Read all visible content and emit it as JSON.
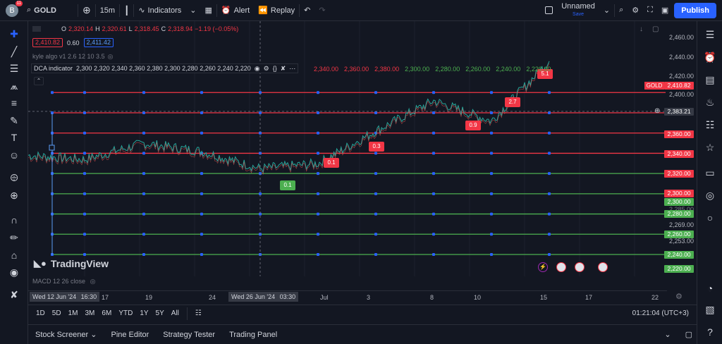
{
  "topbar": {
    "avatar_letter": "B",
    "avatar_badge": "11",
    "symbol": "GOLD",
    "interval": "15m",
    "indicators_label": "Indicators",
    "alert_label": "Alert",
    "replay_label": "Replay",
    "layout_name": "Unnamed",
    "layout_status": "Save",
    "publish_label": "Publish"
  },
  "ohlc": {
    "o": "O",
    "o_val": "2,320.14",
    "h": "H",
    "h_val": "2,320.61",
    "l": "L",
    "l_val": "2,318.45",
    "c": "C",
    "c_val": "2,318.94",
    "chg": "−1.19 (−0.05%)"
  },
  "inputs": {
    "bid": "2,410.82",
    "spread": "0.60",
    "ask": "2,411.42"
  },
  "kyle_label": "kyle algo v1 2.6 12 10 3.5",
  "dca": {
    "label": "DCA indicator",
    "params": "2,300 2,320 2,340 2,360 2,380 2,300 2,280 2,260 2,240 2,220"
  },
  "chart_levels_text": [
    {
      "t": "2,340.00",
      "c": "#f23645"
    },
    {
      "t": "2,360.00",
      "c": "#f23645"
    },
    {
      "t": "2,380.00",
      "c": "#f23645"
    },
    {
      "t": "2,300.00",
      "c": "#4caf50"
    },
    {
      "t": "2,280.00",
      "c": "#4caf50"
    },
    {
      "t": "2,260.00",
      "c": "#4caf50"
    },
    {
      "t": "2,240.00",
      "c": "#4caf50"
    },
    {
      "t": "2,220.00",
      "c": "#4caf50"
    }
  ],
  "price_axis": {
    "labels": [
      "2,460.00",
      "2,440.00",
      "2,420.00",
      "2,400.00",
      "2,269.00",
      "2,253.00"
    ],
    "gold_tag": "GOLD",
    "gold_price": "2,410.82",
    "cursor_price": "2,383.21",
    "red_boxes": [
      "2,360.00",
      "2,340.00",
      "2,320.00",
      "2,300.00"
    ],
    "green_boxes": [
      "2,300.00",
      "2,280.00",
      "2,260.00",
      "2,240.00",
      "2,220.00"
    ],
    "hidden_partial": "2,285.00"
  },
  "tags": [
    {
      "t": "0.1",
      "c": "#4caf50"
    },
    {
      "t": "0.1",
      "c": "#f23645"
    },
    {
      "t": "0.3",
      "c": "#f23645"
    },
    {
      "t": "0.9",
      "c": "#f23645"
    },
    {
      "t": "2.7",
      "c": "#f23645"
    },
    {
      "t": "5.1",
      "c": "#f23645"
    }
  ],
  "watermark": "TradingView",
  "macd_label": "MACD 12 26 close",
  "time_axis": {
    "cursor_left": "Wed 12 Jun '24",
    "cursor_left_time": "16:30",
    "labels": [
      "17",
      "19",
      "24",
      "Jul",
      "3",
      "8",
      "10",
      "15",
      "17",
      "22"
    ],
    "cursor_mid": "Wed 26 Jun '24",
    "cursor_mid_time": "03:30"
  },
  "ranges": [
    "1D",
    "5D",
    "1M",
    "3M",
    "6M",
    "YTD",
    "1Y",
    "5Y",
    "All"
  ],
  "clock": "01:21:04 (UTC+3)",
  "bottom_tabs": [
    "Stock Screener",
    "Pine Editor",
    "Strategy Tester",
    "Trading Panel"
  ],
  "chart_data": {
    "type": "line",
    "title": "GOLD",
    "interval": "15m",
    "x": [
      "Jun 12",
      "Jun 17",
      "Jun 19",
      "Jun 24",
      "Jun 26",
      "Jul 1",
      "Jul 3",
      "Jul 8",
      "Jul 10",
      "Jul 15"
    ],
    "series": [
      {
        "values": [
          2318,
          2314,
          2330,
          2322,
          2305,
          2310,
          2342,
          2372,
          2352,
          2411
        ]
      }
    ],
    "levels_sell": [
      2380,
      2360,
      2340,
      2320
    ],
    "levels_buy": [
      2300,
      2280,
      2260,
      2240,
      2220
    ],
    "ylim": [
      2215,
      2470
    ]
  }
}
